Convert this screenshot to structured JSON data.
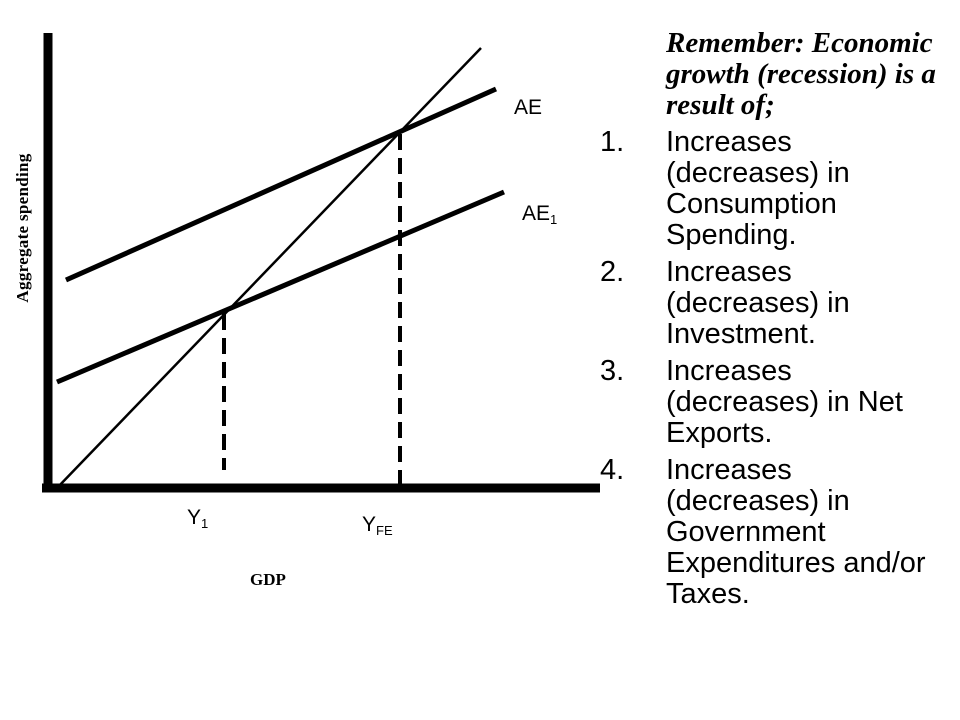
{
  "diagram": {
    "y_axis_title": "Aggregate spending",
    "x_axis_title": "GDP",
    "curves": {
      "ae": {
        "label": "AE",
        "sub": ""
      },
      "ae1": {
        "label": "AE",
        "sub": "1"
      }
    },
    "ticks": {
      "y1": {
        "label": "Y",
        "sub": "1"
      },
      "yfe": {
        "label": "Y",
        "sub": "FE"
      }
    }
  },
  "notes": {
    "heading": "Remember: Economic growth (recession) is a result of;",
    "items": [
      {
        "number": "1.",
        "text": "Increases (decreases) in Consumption Spending."
      },
      {
        "number": "2.",
        "text": "Increases (decreases) in Investment."
      },
      {
        "number": "3.",
        "text": "Increases (decreases) in Net Exports."
      },
      {
        "number": "4.",
        "text": "Increases (decreases) in Government Expenditures and/or Taxes."
      }
    ]
  }
}
